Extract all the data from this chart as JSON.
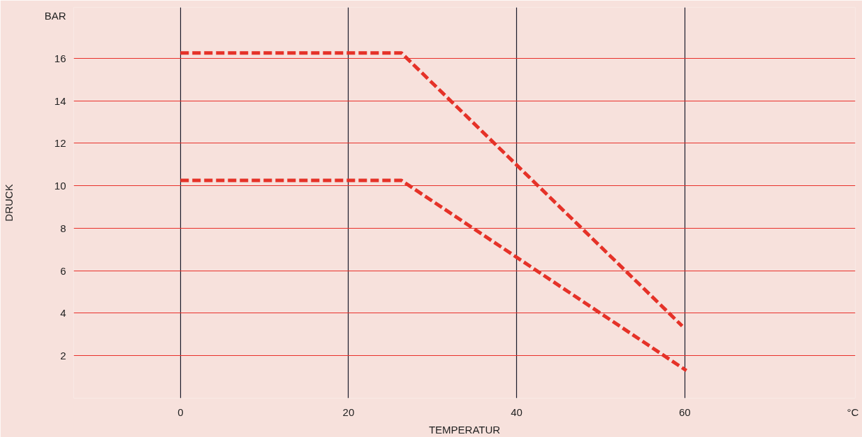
{
  "chart_data": {
    "type": "line",
    "xlabel": "TEMPERATUR",
    "ylabel": "DRUCK",
    "series": [
      {
        "color": "#e53228",
        "x": [
          0,
          26.3,
          59.7
        ],
        "values": [
          16.25,
          16.25,
          3.4
        ]
      },
      {
        "color": "#e53228",
        "x": [
          0,
          26.3,
          60.2
        ],
        "values": [
          10.25,
          10.25,
          1.3
        ]
      }
    ],
    "xlim": [
      -12.7,
      80.3
    ],
    "ylim": [
      0,
      18.4
    ],
    "xticks": [
      0,
      20,
      40,
      60,
      {
        "value": 80,
        "label": "°C"
      }
    ],
    "yticks": [
      2,
      4,
      6,
      8,
      10,
      12,
      14,
      16,
      {
        "value": 18,
        "label": "BAR"
      }
    ],
    "grid": true,
    "line_style": "dashed",
    "marker": "none"
  }
}
